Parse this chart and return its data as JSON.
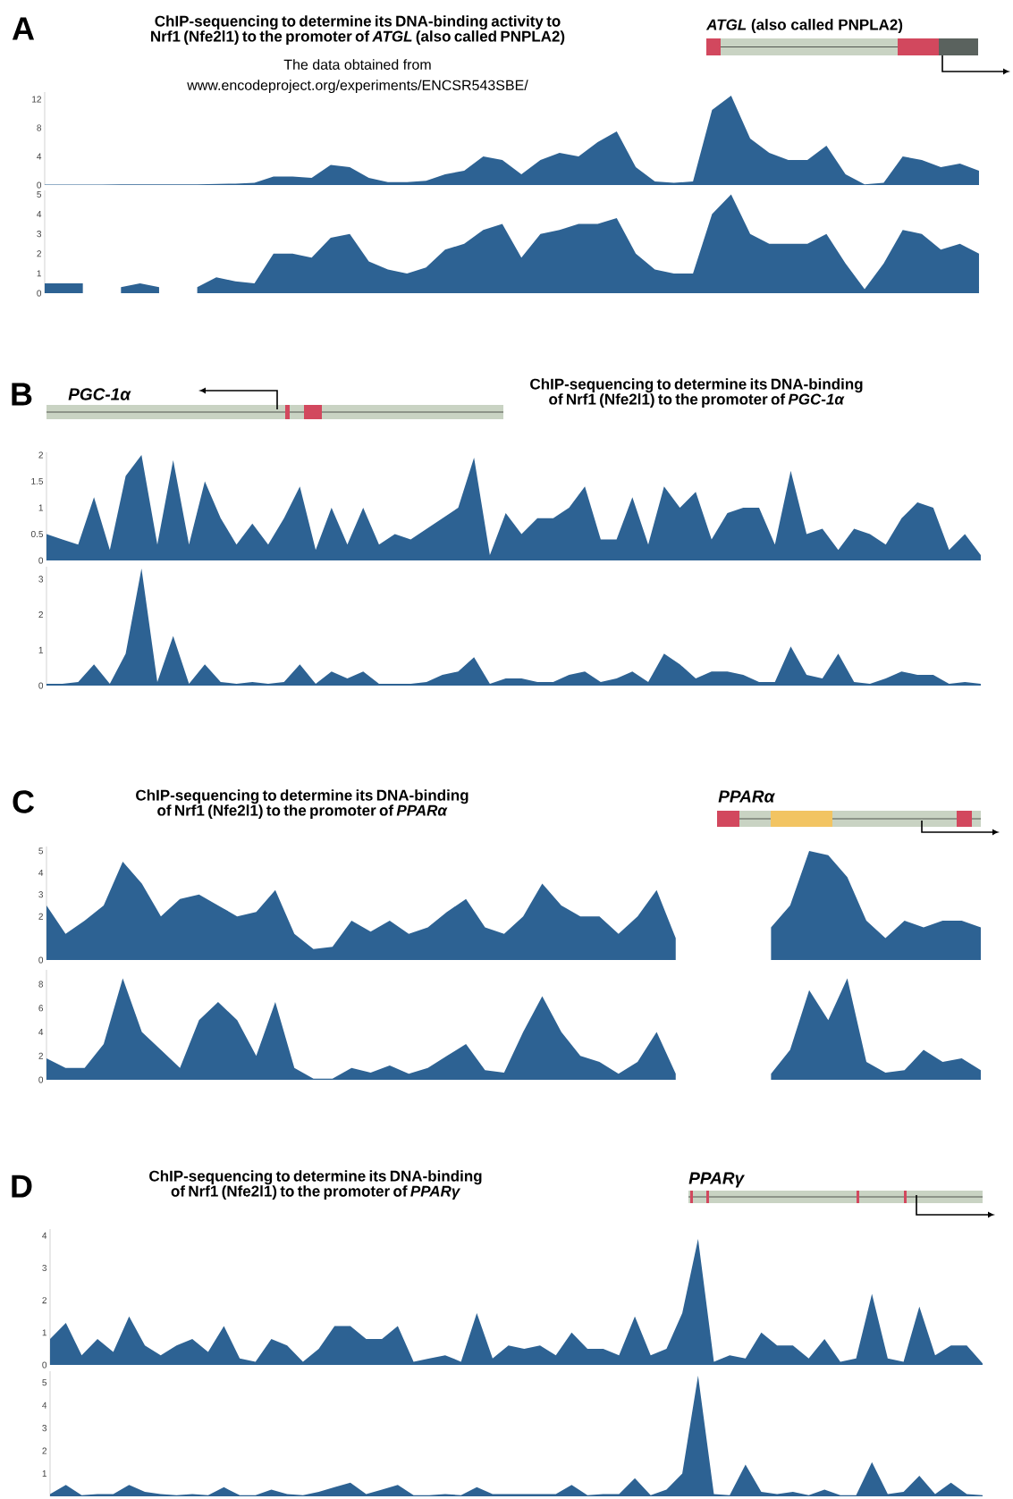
{
  "chart_data": [
    {
      "type": "area",
      "title": "ChIP-sequencing to determine its DNA-binding activity to Nrf1 (Nfe2l1) to the promoter of *ATGL* (also called PNPLA2)",
      "subtitle": "The data obtained from",
      "annotations": [
        "A",
        "*ATGL* (also called PNPLA2)",
        "www.encodeproject.org/experiments/ENCSR543SBE/"
      ],
      "color": "#2d6293",
      "ylim": [
        0,
        13
      ],
      "yticks": [
        0,
        4,
        8,
        12
      ],
      "categories": [
        null,
        null,
        null,
        null,
        null,
        null,
        null,
        null,
        null,
        null,
        null,
        null,
        null,
        null,
        null,
        null,
        null,
        null,
        null,
        null,
        null,
        null,
        null,
        null,
        null,
        null,
        null,
        null,
        null,
        null,
        null,
        null,
        null,
        null,
        null,
        null,
        null,
        null,
        null,
        null,
        null,
        null,
        null,
        null,
        null,
        null,
        null,
        null,
        null,
        null
      ],
      "values": [
        0.05,
        0.05,
        0.05,
        0.05,
        0.1,
        0.1,
        0.1,
        0.1,
        0.1,
        0.15,
        0.2,
        0.3,
        1.2,
        1.2,
        1.0,
        2.8,
        2.5,
        1.0,
        0.4,
        0.4,
        0.6,
        1.5,
        2.0,
        4.0,
        3.5,
        1.5,
        3.5,
        4.5,
        4.0,
        6.0,
        7.5,
        2.5,
        0.5,
        0.3,
        0.5,
        10.5,
        12.5,
        6.5,
        4.5,
        3.5,
        3.5,
        5.5,
        1.5,
        0.1,
        0.3,
        4.0,
        3.5,
        2.5,
        3.0,
        2.0
      ]
    },
    {
      "type": "area",
      "color": "#2d6293",
      "ylim": [
        0,
        5.2
      ],
      "yticks": [
        0,
        1,
        2,
        3,
        4,
        5
      ],
      "categories": [
        null,
        null,
        null,
        null,
        null,
        null,
        null,
        null,
        null,
        null,
        null,
        null,
        null,
        null,
        null,
        null,
        null,
        null,
        null,
        null,
        null,
        null,
        null,
        null,
        null,
        null,
        null,
        null,
        null,
        null,
        null,
        null,
        null,
        null,
        null,
        null,
        null,
        null,
        null,
        null,
        null,
        null,
        null,
        null,
        null,
        null,
        null,
        null,
        null,
        null
      ],
      "values": [
        0.5,
        0.5,
        0.5,
        null,
        0.3,
        0.5,
        0.3,
        null,
        0.3,
        0.8,
        0.6,
        0.5,
        2.0,
        2.0,
        1.8,
        2.8,
        3.0,
        1.6,
        1.2,
        1.0,
        1.3,
        2.2,
        2.5,
        3.2,
        3.5,
        1.8,
        3.0,
        3.2,
        3.5,
        3.5,
        3.8,
        2.0,
        1.2,
        1.0,
        1.0,
        4.0,
        5.0,
        3.0,
        2.5,
        2.5,
        2.5,
        3.0,
        1.5,
        0.2,
        1.5,
        3.2,
        3.0,
        2.2,
        2.5,
        2.0
      ]
    },
    {
      "type": "area",
      "title": "ChIP-sequencing to determine its DNA-binding of Nrf1 (Nfe2l1) to the promoter of *PGC-1α*",
      "annotations": [
        "B",
        "PGC-1α"
      ],
      "color": "#2d6293",
      "ylim": [
        0,
        2.05
      ],
      "yticks": [
        0,
        0.5,
        1,
        1.5,
        2
      ],
      "categories": [
        null,
        null,
        null,
        null,
        null,
        null,
        null,
        null,
        null,
        null,
        null,
        null,
        null,
        null,
        null,
        null,
        null,
        null,
        null,
        null,
        null,
        null,
        null,
        null,
        null,
        null,
        null,
        null,
        null,
        null,
        null,
        null,
        null,
        null,
        null,
        null,
        null,
        null,
        null,
        null,
        null,
        null,
        null,
        null,
        null,
        null,
        null,
        null,
        null,
        null,
        null,
        null,
        null,
        null,
        null,
        null,
        null,
        null,
        null,
        null
      ],
      "values": [
        0.5,
        0.4,
        0.3,
        1.2,
        0.2,
        1.6,
        2.0,
        0.3,
        1.9,
        0.3,
        1.5,
        0.8,
        0.3,
        0.7,
        0.3,
        0.8,
        1.4,
        0.2,
        1.0,
        0.3,
        1.0,
        0.3,
        0.5,
        0.4,
        0.6,
        0.8,
        1.0,
        1.95,
        0.1,
        0.9,
        0.5,
        0.8,
        0.8,
        1.0,
        1.4,
        0.4,
        0.4,
        1.2,
        0.3,
        1.4,
        1.0,
        1.3,
        0.4,
        0.9,
        1.0,
        1.0,
        0.3,
        1.7,
        0.5,
        0.6,
        0.2,
        0.6,
        0.5,
        0.3,
        0.8,
        1.1,
        1.0,
        0.2,
        0.5,
        0.1
      ]
    },
    {
      "type": "area",
      "color": "#2d6293",
      "ylim": [
        0,
        3.35
      ],
      "yticks": [
        0,
        1,
        2,
        3
      ],
      "categories": [
        null,
        null,
        null,
        null,
        null,
        null,
        null,
        null,
        null,
        null,
        null,
        null,
        null,
        null,
        null,
        null,
        null,
        null,
        null,
        null,
        null,
        null,
        null,
        null,
        null,
        null,
        null,
        null,
        null,
        null,
        null,
        null,
        null,
        null,
        null,
        null,
        null,
        null,
        null,
        null,
        null,
        null,
        null,
        null,
        null,
        null,
        null,
        null,
        null,
        null,
        null,
        null,
        null,
        null,
        null,
        null,
        null,
        null,
        null,
        null
      ],
      "values": [
        0.05,
        0.05,
        0.1,
        0.6,
        0.05,
        0.9,
        3.3,
        0.1,
        1.4,
        0.05,
        0.6,
        0.1,
        0.05,
        0.1,
        0.05,
        0.1,
        0.6,
        0.05,
        0.4,
        0.2,
        0.4,
        0.05,
        0.05,
        0.05,
        0.1,
        0.3,
        0.4,
        0.8,
        0.05,
        0.2,
        0.2,
        0.1,
        0.1,
        0.3,
        0.4,
        0.1,
        0.2,
        0.4,
        0.1,
        0.9,
        0.6,
        0.2,
        0.4,
        0.4,
        0.3,
        0.1,
        0.1,
        1.1,
        0.3,
        0.2,
        0.9,
        0.1,
        0.05,
        0.2,
        0.4,
        0.3,
        0.3,
        0.05,
        0.1,
        0.05
      ]
    },
    {
      "type": "area",
      "title": "ChIP-sequencing to determine its DNA-binding of Nrf1 (Nfe2l1) to the promoter of *PPARα*",
      "annotations": [
        "C",
        "PPARα"
      ],
      "color": "#2d6293",
      "ylim": [
        0,
        5.2
      ],
      "yticks": [
        0,
        2,
        3,
        4,
        5
      ],
      "categories": [
        null,
        null,
        null,
        null,
        null,
        null,
        null,
        null,
        null,
        null,
        null,
        null,
        null,
        null,
        null,
        null,
        null,
        null,
        null,
        null,
        null,
        null,
        null,
        null,
        null,
        null,
        null,
        null,
        null,
        null,
        null,
        null,
        null,
        null,
        null,
        null,
        null,
        null,
        null,
        null,
        null,
        null,
        null,
        null,
        null,
        null,
        null,
        null,
        null,
        null
      ],
      "values": [
        2.5,
        1.2,
        1.8,
        2.5,
        4.5,
        3.5,
        2.0,
        2.8,
        3.0,
        2.5,
        2.0,
        2.2,
        3.2,
        1.2,
        0.5,
        0.6,
        1.8,
        1.3,
        1.8,
        1.2,
        1.5,
        2.2,
        2.8,
        1.5,
        1.2,
        2.0,
        3.5,
        2.5,
        2.0,
        2.0,
        1.2,
        2.0,
        3.2,
        1.0,
        null,
        null,
        null,
        null,
        1.5,
        2.5,
        5.0,
        4.8,
        3.8,
        1.8,
        1.0,
        1.8,
        1.5,
        1.8,
        1.8,
        1.5
      ]
    },
    {
      "type": "area",
      "color": "#2d6293",
      "ylim": [
        0,
        9.2
      ],
      "yticks": [
        0,
        2,
        4,
        6,
        8
      ],
      "categories": [
        null,
        null,
        null,
        null,
        null,
        null,
        null,
        null,
        null,
        null,
        null,
        null,
        null,
        null,
        null,
        null,
        null,
        null,
        null,
        null,
        null,
        null,
        null,
        null,
        null,
        null,
        null,
        null,
        null,
        null,
        null,
        null,
        null,
        null,
        null,
        null,
        null,
        null,
        null,
        null,
        null,
        null,
        null,
        null,
        null,
        null,
        null,
        null,
        null,
        null
      ],
      "values": [
        1.8,
        1.0,
        1.0,
        3.0,
        8.5,
        4.0,
        2.5,
        1.0,
        5.0,
        6.5,
        5.0,
        2.0,
        6.5,
        1.0,
        0.1,
        0.1,
        1.0,
        0.6,
        1.2,
        0.5,
        1.0,
        2.0,
        3.0,
        0.8,
        0.6,
        4.0,
        7.0,
        4.0,
        2.0,
        1.5,
        0.5,
        1.5,
        4.0,
        0.5,
        null,
        null,
        null,
        null,
        0.5,
        2.5,
        7.5,
        5.0,
        8.5,
        1.5,
        0.6,
        0.8,
        2.5,
        1.5,
        1.8,
        0.8
      ]
    },
    {
      "type": "area",
      "title": "ChIP-sequencing to determine its DNA-binding of Nrf1 (Nfe2l1) to the promoter of *PPARγ*",
      "annotations": [
        "D",
        "PPARγ"
      ],
      "color": "#2d6293",
      "ylim": [
        0,
        4.2
      ],
      "yticks": [
        0,
        1,
        2,
        3,
        4
      ],
      "categories": [
        null,
        null,
        null,
        null,
        null,
        null,
        null,
        null,
        null,
        null,
        null,
        null,
        null,
        null,
        null,
        null,
        null,
        null,
        null,
        null,
        null,
        null,
        null,
        null,
        null,
        null,
        null,
        null,
        null,
        null,
        null,
        null,
        null,
        null,
        null,
        null,
        null,
        null,
        null,
        null,
        null,
        null,
        null,
        null,
        null,
        null,
        null,
        null,
        null,
        null,
        null,
        null,
        null,
        null,
        null,
        null,
        null,
        null,
        null,
        null
      ],
      "values": [
        0.8,
        1.3,
        0.3,
        0.8,
        0.4,
        1.5,
        0.6,
        0.3,
        0.6,
        0.8,
        0.4,
        1.2,
        0.2,
        0.1,
        0.8,
        0.6,
        0.1,
        0.5,
        1.2,
        1.2,
        0.8,
        0.8,
        1.2,
        0.1,
        0.2,
        0.3,
        0.1,
        1.6,
        0.2,
        0.6,
        0.5,
        0.6,
        0.3,
        1.0,
        0.5,
        0.5,
        0.3,
        1.5,
        0.3,
        0.5,
        1.6,
        3.9,
        0.1,
        0.3,
        0.2,
        1.0,
        0.6,
        0.6,
        0.2,
        0.8,
        0.1,
        0.2,
        2.2,
        0.2,
        0.1,
        1.8,
        0.3,
        0.6,
        0.6,
        0.05
      ]
    },
    {
      "type": "area",
      "color": "#2d6293",
      "ylim": [
        0,
        5.5
      ],
      "yticks": [
        1,
        2,
        3,
        4,
        5
      ],
      "categories": [
        null,
        null,
        null,
        null,
        null,
        null,
        null,
        null,
        null,
        null,
        null,
        null,
        null,
        null,
        null,
        null,
        null,
        null,
        null,
        null,
        null,
        null,
        null,
        null,
        null,
        null,
        null,
        null,
        null,
        null,
        null,
        null,
        null,
        null,
        null,
        null,
        null,
        null,
        null,
        null,
        null,
        null,
        null,
        null,
        null,
        null,
        null,
        null,
        null,
        null,
        null,
        null,
        null,
        null,
        null,
        null,
        null,
        null,
        null,
        null
      ],
      "values": [
        0.1,
        0.5,
        0.05,
        0.1,
        0.1,
        0.5,
        0.2,
        0.1,
        0.05,
        0.1,
        0.05,
        0.4,
        0.05,
        0.05,
        0.3,
        0.1,
        0.05,
        0.2,
        0.4,
        0.6,
        0.1,
        0.3,
        0.5,
        0.05,
        0.05,
        0.1,
        0.05,
        0.4,
        0.1,
        0.1,
        0.1,
        0.1,
        0.1,
        0.5,
        0.05,
        0.1,
        0.1,
        0.8,
        0.05,
        0.3,
        1.0,
        5.3,
        0.1,
        0.05,
        1.4,
        0.2,
        0.1,
        0.2,
        0.05,
        0.3,
        0.05,
        0.05,
        1.5,
        0.1,
        0.2,
        0.9,
        0.1,
        0.6,
        0.1,
        0.05
      ]
    }
  ]
}
